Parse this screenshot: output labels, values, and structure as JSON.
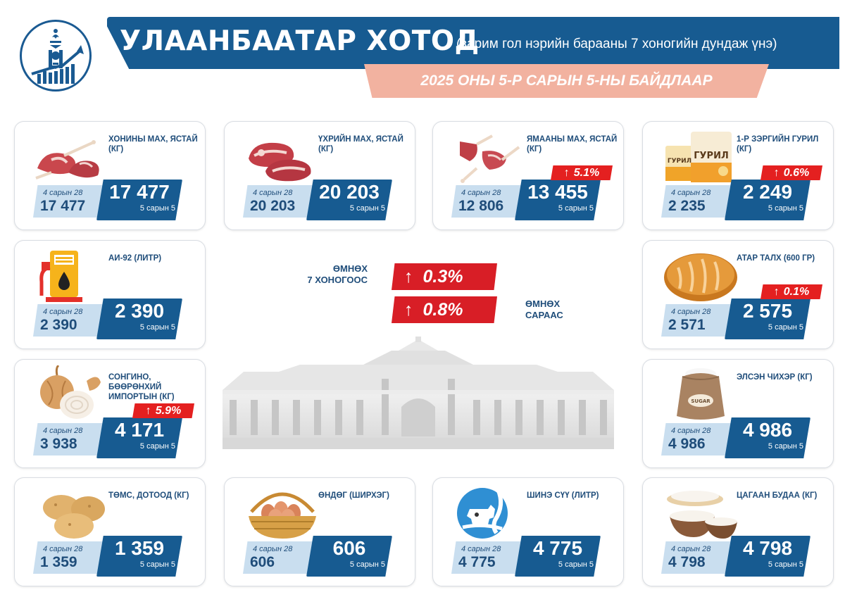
{
  "header": {
    "title": "УЛААНБААТАР ХОТОД",
    "subtitle": "(зарим гол нэрийн барааны 7 хоногийн дундаж үнэ)",
    "date_line": "2025 ОНЫ 5-Р САРЫН 5-НЫ БАЙДЛААР"
  },
  "colors": {
    "primary": "#175b91",
    "light_blue": "#c9deef",
    "increase_red": "#e42020",
    "date_band": "#f2b2a0"
  },
  "summary": {
    "week_label_line1": "ӨМНӨХ",
    "week_label_line2": "7 ХОНОГООС",
    "week_change": "0.3%",
    "month_label_line1": "ӨМНӨХ",
    "month_label_line2": "САРААС",
    "month_change": "0.8%",
    "arrow": "↑"
  },
  "items": [
    {
      "name": "ХОНИНЫ МАХ, ЯСТАЙ (КГ)",
      "icon": "lamb-meat-icon",
      "old_label": "4 сарын 28",
      "old_value": "17 477",
      "new_value": "17 477",
      "new_label": "5 сарын 5",
      "change": ""
    },
    {
      "name": "ҮХРИЙН МАХ, ЯСТАЙ (КГ)",
      "icon": "beef-meat-icon",
      "old_label": "4 сарын 28",
      "old_value": "20 203",
      "new_value": "20 203",
      "new_label": "5 сарын 5",
      "change": ""
    },
    {
      "name": "ЯМААНЫ МАХ, ЯСТАЙ (КГ)",
      "icon": "goat-meat-icon",
      "old_label": "4 сарын 28",
      "old_value": "12 806",
      "new_value": "13 455",
      "new_label": "5 сарын 5",
      "change": "5.1%"
    },
    {
      "name": "1-Р ЗЭРГИЙН ГУРИЛ (КГ)",
      "icon": "flour-bag-icon",
      "old_label": "4 сарын 28",
      "old_value": "2 235",
      "new_value": "2 249",
      "new_label": "5 сарын 5",
      "change": "0.6%",
      "flour_text": "ГУРИЛ"
    },
    {
      "name": "АИ-92 (ЛИТР)",
      "icon": "fuel-pump-icon",
      "old_label": "4 сарын 28",
      "old_value": "2 390",
      "new_value": "2 390",
      "new_label": "5 сарын 5",
      "change": ""
    },
    {
      "name": "АТАР ТАЛХ (600 ГР)",
      "icon": "bread-icon",
      "old_label": "4 сарын 28",
      "old_value": "2 571",
      "new_value": "2 575",
      "new_label": "5 сарын 5",
      "change": "0.1%"
    },
    {
      "name": "СОНГИНО, БӨӨРӨНХИЙ ИМПОРТЫН (КГ)",
      "icon": "onion-icon",
      "old_label": "4 сарын 28",
      "old_value": "3 938",
      "new_value": "4 171",
      "new_label": "5 сарын 5",
      "change": "5.9%"
    },
    {
      "name": "ЭЛСЭН ЧИХЭР (КГ)",
      "icon": "sugar-sack-icon",
      "old_label": "4 сарын 28",
      "old_value": "4 986",
      "new_value": "4 986",
      "new_label": "5 сарын 5",
      "change": "",
      "sugar_text": "SUGAR"
    },
    {
      "name": "ТӨМС, ДОТООД (КГ)",
      "icon": "potato-icon",
      "old_label": "4 сарын 28",
      "old_value": "1 359",
      "new_value": "1 359",
      "new_label": "5 сарын 5",
      "change": ""
    },
    {
      "name": "ӨНДӨГ (ШИРХЭГ)",
      "icon": "egg-basket-icon",
      "old_label": "4 сарын 28",
      "old_value": "606",
      "new_value": "606",
      "new_label": "5 сарын 5",
      "change": ""
    },
    {
      "name": "ШИНЭ СҮҮ (ЛИТР)",
      "icon": "milk-cow-icon",
      "old_label": "4 сарын 28",
      "old_value": "4 775",
      "new_value": "4 775",
      "new_label": "5 сарын 5",
      "change": ""
    },
    {
      "name": "ЦАГААН БУДАА (КГ)",
      "icon": "rice-bowl-icon",
      "old_label": "4 сарын 28",
      "old_value": "4 798",
      "new_value": "4 798",
      "new_label": "5 сарын 5",
      "change": ""
    }
  ]
}
